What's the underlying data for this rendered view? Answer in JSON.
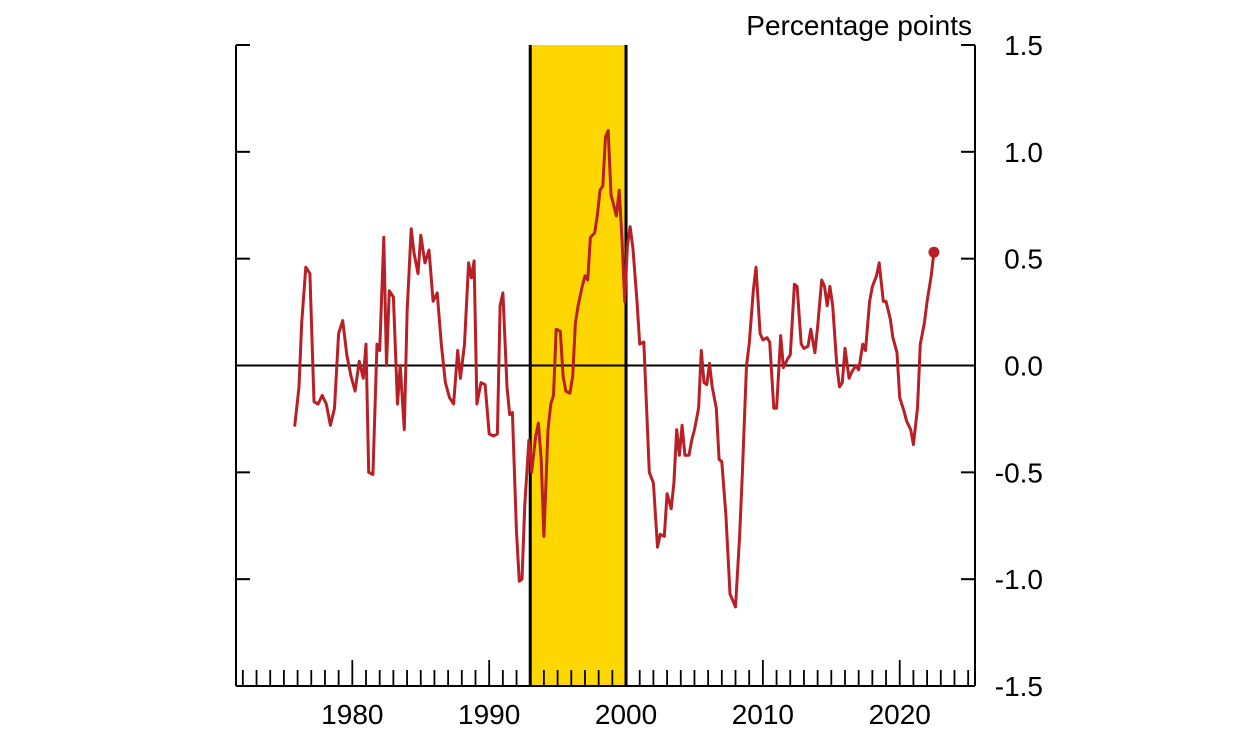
{
  "chart_data": {
    "type": "line",
    "title": "",
    "xlabel": "",
    "ylabel": "Percentage points",
    "xlim": [
      1971.5,
      2025.5
    ],
    "ylim": [
      -1.5,
      1.5
    ],
    "y_ticks": [
      -1.5,
      -1.0,
      -0.5,
      0.0,
      0.5,
      1.0,
      1.5
    ],
    "y_tick_labels": [
      "-1.5",
      "-1.0",
      "-0.5",
      "0.0",
      "0.5",
      "1.0",
      "1.5"
    ],
    "x_tick_labels": [
      "1980",
      "1990",
      "2000",
      "2010",
      "2020"
    ],
    "x_ticks": [
      1980,
      1990,
      2000,
      2010,
      2020
    ],
    "minor_x_ticks_every": 1,
    "y_axis_side": "right",
    "zero_line": true,
    "grid": false,
    "shaded_period": {
      "start": 1993,
      "end": 2000,
      "color": "#FFD700"
    },
    "series": [
      {
        "color": "#B82025",
        "end_marker": true,
        "points": [
          [
            1975.8,
            -0.28
          ],
          [
            1976.1,
            -0.1
          ],
          [
            1976.3,
            0.2
          ],
          [
            1976.6,
            0.46
          ],
          [
            1976.9,
            0.43
          ],
          [
            1977.2,
            -0.17
          ],
          [
            1977.5,
            -0.18
          ],
          [
            1977.8,
            -0.14
          ],
          [
            1978.1,
            -0.18
          ],
          [
            1978.4,
            -0.28
          ],
          [
            1978.7,
            -0.2
          ],
          [
            1979.0,
            0.15
          ],
          [
            1979.3,
            0.21
          ],
          [
            1979.6,
            0.05
          ],
          [
            1979.9,
            -0.05
          ],
          [
            1980.2,
            -0.12
          ],
          [
            1980.5,
            0.02
          ],
          [
            1980.8,
            -0.06
          ],
          [
            1981.0,
            0.1
          ],
          [
            1981.2,
            -0.5
          ],
          [
            1981.5,
            -0.51
          ],
          [
            1981.8,
            0.1
          ],
          [
            1982.0,
            0.07
          ],
          [
            1982.3,
            0.6
          ],
          [
            1982.5,
            0.0
          ],
          [
            1982.7,
            0.35
          ],
          [
            1983.0,
            0.32
          ],
          [
            1983.3,
            -0.18
          ],
          [
            1983.5,
            0.0
          ],
          [
            1983.8,
            -0.3
          ],
          [
            1984.0,
            0.25
          ],
          [
            1984.3,
            0.64
          ],
          [
            1984.5,
            0.53
          ],
          [
            1984.8,
            0.43
          ],
          [
            1985.0,
            0.61
          ],
          [
            1985.3,
            0.48
          ],
          [
            1985.6,
            0.54
          ],
          [
            1985.9,
            0.3
          ],
          [
            1986.2,
            0.34
          ],
          [
            1986.5,
            0.1
          ],
          [
            1986.8,
            -0.08
          ],
          [
            1987.1,
            -0.15
          ],
          [
            1987.4,
            -0.18
          ],
          [
            1987.7,
            0.07
          ],
          [
            1987.9,
            -0.06
          ],
          [
            1988.2,
            0.1
          ],
          [
            1988.5,
            0.48
          ],
          [
            1988.7,
            0.41
          ],
          [
            1988.9,
            0.49
          ],
          [
            1989.1,
            -0.18
          ],
          [
            1989.4,
            -0.08
          ],
          [
            1989.7,
            -0.09
          ],
          [
            1990.0,
            -0.32
          ],
          [
            1990.3,
            -0.33
          ],
          [
            1990.6,
            -0.32
          ],
          [
            1990.8,
            0.28
          ],
          [
            1991.0,
            0.34
          ],
          [
            1991.3,
            -0.1
          ],
          [
            1991.5,
            -0.23
          ],
          [
            1991.7,
            -0.22
          ],
          [
            1992.0,
            -0.78
          ],
          [
            1992.2,
            -1.01
          ],
          [
            1992.4,
            -1.0
          ],
          [
            1992.6,
            -0.65
          ],
          [
            1992.9,
            -0.35
          ],
          [
            1993.1,
            -0.5
          ],
          [
            1993.4,
            -0.33
          ],
          [
            1993.6,
            -0.27
          ],
          [
            1993.8,
            -0.44
          ],
          [
            1994.0,
            -0.8
          ],
          [
            1994.3,
            -0.3
          ],
          [
            1994.5,
            -0.18
          ],
          [
            1994.7,
            -0.14
          ],
          [
            1994.9,
            0.17
          ],
          [
            1995.2,
            0.16
          ],
          [
            1995.4,
            -0.05
          ],
          [
            1995.6,
            -0.12
          ],
          [
            1995.9,
            -0.13
          ],
          [
            1996.1,
            -0.05
          ],
          [
            1996.3,
            0.2
          ],
          [
            1996.5,
            0.28
          ],
          [
            1996.8,
            0.37
          ],
          [
            1997.0,
            0.42
          ],
          [
            1997.2,
            0.4
          ],
          [
            1997.4,
            0.6
          ],
          [
            1997.7,
            0.62
          ],
          [
            1997.9,
            0.7
          ],
          [
            1998.1,
            0.82
          ],
          [
            1998.3,
            0.84
          ],
          [
            1998.5,
            1.07
          ],
          [
            1998.7,
            1.1
          ],
          [
            1998.9,
            0.8
          ],
          [
            1999.1,
            0.75
          ],
          [
            1999.3,
            0.7
          ],
          [
            1999.5,
            0.82
          ],
          [
            1999.7,
            0.6
          ],
          [
            1999.9,
            0.3
          ],
          [
            2000.1,
            0.56
          ],
          [
            2000.3,
            0.65
          ],
          [
            2000.5,
            0.55
          ],
          [
            2000.8,
            0.3
          ],
          [
            2001.0,
            0.1
          ],
          [
            2001.3,
            0.11
          ],
          [
            2001.5,
            -0.2
          ],
          [
            2001.7,
            -0.5
          ],
          [
            2002.0,
            -0.55
          ],
          [
            2002.3,
            -0.85
          ],
          [
            2002.5,
            -0.79
          ],
          [
            2002.8,
            -0.8
          ],
          [
            2003.0,
            -0.6
          ],
          [
            2003.3,
            -0.67
          ],
          [
            2003.5,
            -0.55
          ],
          [
            2003.7,
            -0.3
          ],
          [
            2003.9,
            -0.42
          ],
          [
            2004.1,
            -0.28
          ],
          [
            2004.3,
            -0.42
          ],
          [
            2004.6,
            -0.42
          ],
          [
            2004.8,
            -0.35
          ],
          [
            2005.0,
            -0.3
          ],
          [
            2005.3,
            -0.2
          ],
          [
            2005.5,
            0.07
          ],
          [
            2005.7,
            -0.08
          ],
          [
            2005.9,
            -0.09
          ],
          [
            2006.1,
            0.01
          ],
          [
            2006.3,
            -0.1
          ],
          [
            2006.6,
            -0.2
          ],
          [
            2006.8,
            -0.44
          ],
          [
            2007.0,
            -0.45
          ],
          [
            2007.3,
            -0.7
          ],
          [
            2007.6,
            -1.07
          ],
          [
            2007.8,
            -1.1
          ],
          [
            2008.0,
            -1.13
          ],
          [
            2008.3,
            -0.8
          ],
          [
            2008.5,
            -0.5
          ],
          [
            2008.8,
            0.0
          ],
          [
            2009.0,
            0.1
          ],
          [
            2009.3,
            0.35
          ],
          [
            2009.5,
            0.46
          ],
          [
            2009.8,
            0.15
          ],
          [
            2010.0,
            0.12
          ],
          [
            2010.3,
            0.13
          ],
          [
            2010.5,
            0.11
          ],
          [
            2010.8,
            -0.2
          ],
          [
            2011.0,
            -0.2
          ],
          [
            2011.3,
            0.14
          ],
          [
            2011.5,
            -0.01
          ],
          [
            2011.8,
            0.03
          ],
          [
            2012.0,
            0.05
          ],
          [
            2012.3,
            0.38
          ],
          [
            2012.5,
            0.37
          ],
          [
            2012.8,
            0.1
          ],
          [
            2013.0,
            0.08
          ],
          [
            2013.3,
            0.09
          ],
          [
            2013.5,
            0.17
          ],
          [
            2013.8,
            0.06
          ],
          [
            2014.0,
            0.18
          ],
          [
            2014.3,
            0.4
          ],
          [
            2014.5,
            0.37
          ],
          [
            2014.7,
            0.28
          ],
          [
            2014.9,
            0.37
          ],
          [
            2015.1,
            0.28
          ],
          [
            2015.4,
            0.0
          ],
          [
            2015.6,
            -0.1
          ],
          [
            2015.8,
            -0.08
          ],
          [
            2016.0,
            0.08
          ],
          [
            2016.3,
            -0.06
          ],
          [
            2016.5,
            -0.03
          ],
          [
            2016.8,
            0.0
          ],
          [
            2017.0,
            -0.02
          ],
          [
            2017.3,
            0.1
          ],
          [
            2017.5,
            0.07
          ],
          [
            2017.8,
            0.3
          ],
          [
            2018.0,
            0.37
          ],
          [
            2018.3,
            0.42
          ],
          [
            2018.5,
            0.48
          ],
          [
            2018.8,
            0.3
          ],
          [
            2019.0,
            0.3
          ],
          [
            2019.3,
            0.22
          ],
          [
            2019.5,
            0.13
          ],
          [
            2019.8,
            0.06
          ],
          [
            2020.0,
            -0.15
          ],
          [
            2020.3,
            -0.21
          ],
          [
            2020.5,
            -0.26
          ],
          [
            2020.8,
            -0.3
          ],
          [
            2021.0,
            -0.37
          ],
          [
            2021.3,
            -0.2
          ],
          [
            2021.5,
            0.1
          ],
          [
            2021.8,
            0.2
          ],
          [
            2022.0,
            0.3
          ],
          [
            2022.3,
            0.42
          ],
          [
            2022.5,
            0.53
          ]
        ]
      }
    ]
  }
}
